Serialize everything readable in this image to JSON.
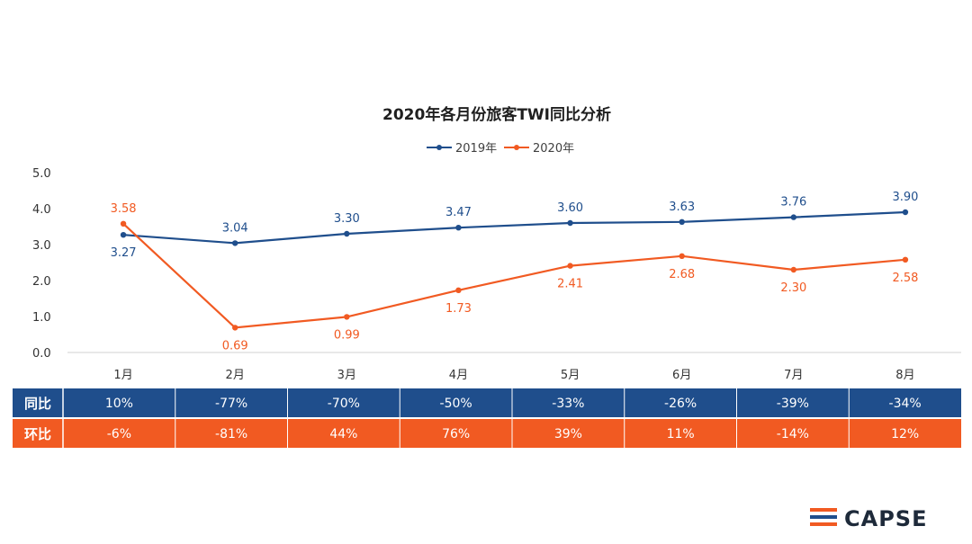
{
  "chart_data": {
    "type": "line",
    "title": "2020年各月份旅客TWI同比分析",
    "categories": [
      "1月",
      "2月",
      "3月",
      "4月",
      "5月",
      "6月",
      "7月",
      "8月"
    ],
    "ylim": [
      0,
      5
    ],
    "yticks": [
      "0.0",
      "1.0",
      "2.0",
      "3.0",
      "4.0",
      "5.0"
    ],
    "legend_position": "top-center",
    "series": [
      {
        "name": "2019年",
        "color": "#1f4e8c",
        "values": [
          3.27,
          3.04,
          3.3,
          3.47,
          3.6,
          3.63,
          3.76,
          3.9
        ],
        "labels": [
          "3.27",
          "3.04",
          "3.30",
          "3.47",
          "3.60",
          "3.63",
          "3.76",
          "3.90"
        ]
      },
      {
        "name": "2020年",
        "color": "#f15a22",
        "values": [
          3.58,
          0.69,
          0.99,
          1.73,
          2.41,
          2.68,
          2.3,
          2.58
        ],
        "labels": [
          "3.58",
          "0.69",
          "0.99",
          "1.73",
          "2.41",
          "2.68",
          "2.30",
          "2.58"
        ]
      }
    ]
  },
  "table": {
    "rows": [
      {
        "label": "同比",
        "color": "#1f4e8c",
        "values": [
          "10%",
          "-77%",
          "-70%",
          "-50%",
          "-33%",
          "-26%",
          "-39%",
          "-34%"
        ]
      },
      {
        "label": "环比",
        "color": "#f15a22",
        "values": [
          "-6%",
          "-81%",
          "44%",
          "76%",
          "39%",
          "11%",
          "-14%",
          "12%"
        ]
      }
    ]
  },
  "watermark": {
    "text": "CAPSE"
  }
}
